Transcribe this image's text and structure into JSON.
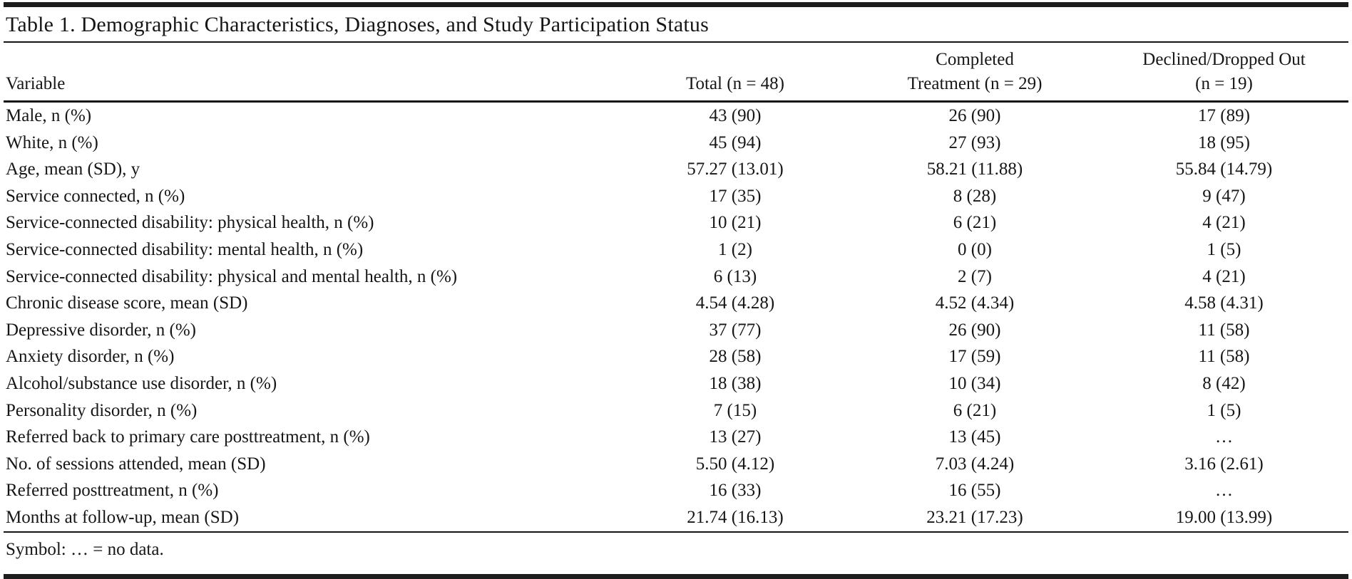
{
  "colors": {
    "background": "#ffffff",
    "text": "#161616",
    "rule": "#141414",
    "thick_bar": "#1d1d1d"
  },
  "table": {
    "title": "Table 1. Demographic Characteristics, Diagnoses, and Study Participation Status",
    "columns": [
      {
        "id": "variable",
        "line1": "",
        "line2": "Variable"
      },
      {
        "id": "total",
        "line1": "",
        "line2": "Total (n = 48)"
      },
      {
        "id": "completed_treatment",
        "line1": "Completed",
        "line2": "Treatment (n = 29)"
      },
      {
        "id": "declined_dropped_out",
        "line1": "Declined/Dropped Out",
        "line2": "(n = 19)"
      }
    ],
    "rows": [
      {
        "variable": "Male, n (%)",
        "total": "43 (90)",
        "completed": "26 (90)",
        "declined": "17 (89)"
      },
      {
        "variable": "White, n (%)",
        "total": "45 (94)",
        "completed": "27 (93)",
        "declined": "18 (95)"
      },
      {
        "variable": "Age, mean (SD), y",
        "total": "57.27 (13.01)",
        "completed": "58.21 (11.88)",
        "declined": "55.84 (14.79)"
      },
      {
        "variable": "Service connected, n (%)",
        "total": "17 (35)",
        "completed": "8 (28)",
        "declined": "9 (47)"
      },
      {
        "variable": "Service-connected disability: physical health, n (%)",
        "total": "10 (21)",
        "completed": "6 (21)",
        "declined": "4 (21)"
      },
      {
        "variable": "Service-connected disability: mental health, n (%)",
        "total": "1 (2)",
        "completed": "0 (0)",
        "declined": "1 (5)"
      },
      {
        "variable": "Service-connected disability: physical and mental health, n (%)",
        "total": "6 (13)",
        "completed": "2 (7)",
        "declined": "4 (21)"
      },
      {
        "variable": "Chronic disease score, mean (SD)",
        "total": "4.54 (4.28)",
        "completed": "4.52 (4.34)",
        "declined": "4.58 (4.31)"
      },
      {
        "variable": "Depressive disorder, n (%)",
        "total": "37 (77)",
        "completed": "26 (90)",
        "declined": "11 (58)"
      },
      {
        "variable": "Anxiety disorder, n (%)",
        "total": "28 (58)",
        "completed": "17 (59)",
        "declined": "11 (58)"
      },
      {
        "variable": "Alcohol/substance use disorder, n (%)",
        "total": "18 (38)",
        "completed": "10 (34)",
        "declined": "8 (42)"
      },
      {
        "variable": "Personality disorder, n (%)",
        "total": "7 (15)",
        "completed": "6 (21)",
        "declined": "1 (5)"
      },
      {
        "variable": "Referred back to primary care posttreatment, n (%)",
        "total": "13 (27)",
        "completed": "13 (45)",
        "declined": "…"
      },
      {
        "variable": "No. of sessions attended, mean (SD)",
        "total": "5.50 (4.12)",
        "completed": "7.03 (4.24)",
        "declined": "3.16 (2.61)"
      },
      {
        "variable": "Referred posttreatment, n (%)",
        "total": "16 (33)",
        "completed": "16 (55)",
        "declined": "…"
      },
      {
        "variable": "Months at follow-up, mean (SD)",
        "total": "21.74 (16.13)",
        "completed": "23.21 (17.23)",
        "declined": "19.00 (13.99)"
      }
    ],
    "footnote": "Symbol: … = no data."
  }
}
